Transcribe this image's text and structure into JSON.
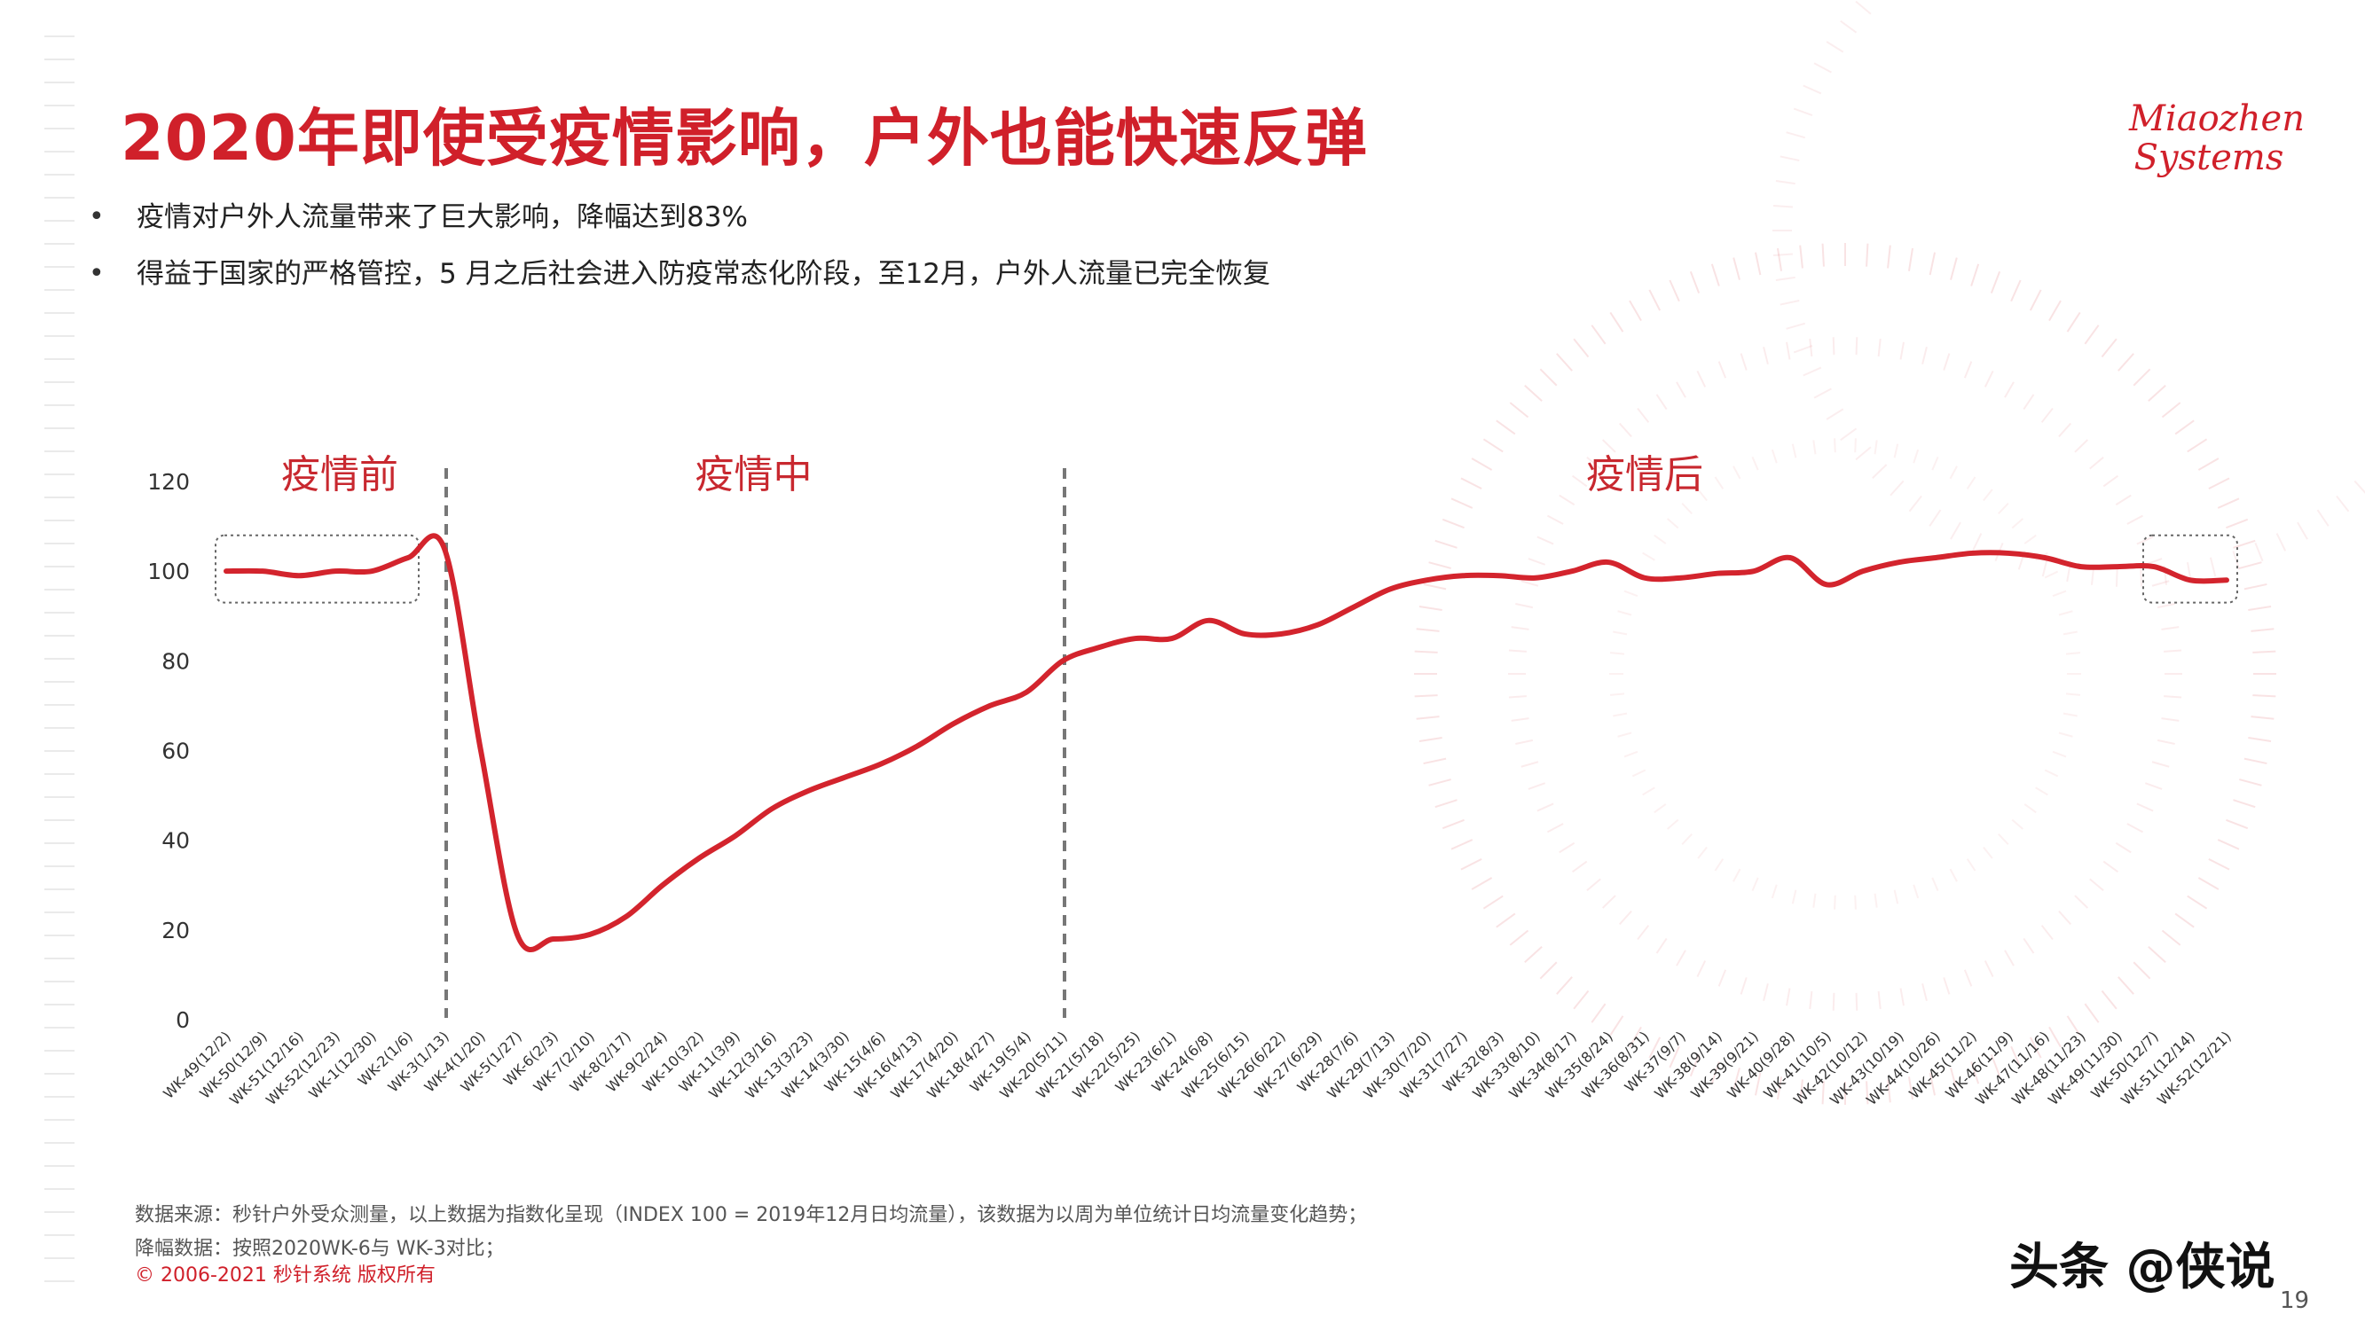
{
  "page": {
    "title": "2020年即使受疫情影响，户外也能快速反弹",
    "logo_line1": "Miaozhen",
    "logo_line2": "Systems",
    "bullets": [
      "疫情对户外人流量带来了巨大影响，降幅达到83%",
      "得益于国家的严格管控，5 月之后社会进入防疫常态化阶段，至12月，户外人流量已完全恢复"
    ],
    "footnote_source": "数据来源：秒针户外受众测量，以上数据为指数化呈现（INDEX 100 = 2019年12月日均流量），该数据为以周为单位统计日均流量变化趋势；",
    "footnote_decline": "降幅数据：按照2020WK-6与 WK-3对比；",
    "copyright": "© 2006-2021 秒针系统 版权所有",
    "watermark": "头条 @侠说",
    "page_number": "19"
  },
  "colors": {
    "accent": "#d0202a",
    "line": "#d3242d",
    "divider": "#777777"
  },
  "chart_data": {
    "type": "line",
    "title": "",
    "xlabel": "",
    "ylabel": "",
    "ylim": [
      0,
      120
    ],
    "yticks": [
      0,
      20,
      40,
      60,
      80,
      100,
      120
    ],
    "grid": false,
    "phase_labels": [
      "疫情前",
      "疫情中",
      "疫情后"
    ],
    "phase_boundaries": [
      "WK-3(1/13)",
      "WK-20(5/11)"
    ],
    "highlight_boxes": [
      [
        "WK-49(12/2)",
        "WK-2(1/6)"
      ],
      [
        "WK-50(12/7)",
        "WK-52(12/21)"
      ]
    ],
    "categories": [
      "WK-49(12/2)",
      "WK-50(12/9)",
      "WK-51(12/16)",
      "WK-52(12/23)",
      "WK-1(12/30)",
      "WK-2(1/6)",
      "WK-3(1/13)",
      "WK-4(1/20)",
      "WK-5(1/27)",
      "WK-6(2/3)",
      "WK-7(2/10)",
      "WK-8(2/17)",
      "WK-9(2/24)",
      "WK-10(3/2)",
      "WK-11(3/9)",
      "WK-12(3/16)",
      "WK-13(3/23)",
      "WK-14(3/30)",
      "WK-15(4/6)",
      "WK-16(4/13)",
      "WK-17(4/20)",
      "WK-18(4/27)",
      "WK-19(5/4)",
      "WK-20(5/11)",
      "WK-21(5/18)",
      "WK-22(5/25)",
      "WK-23(6/1)",
      "WK-24(6/8)",
      "WK-25(6/15)",
      "WK-26(6/22)",
      "WK-27(6/29)",
      "WK-28(7/6)",
      "WK-29(7/13)",
      "WK-30(7/20)",
      "WK-31(7/27)",
      "WK-32(8/3)",
      "WK-33(8/10)",
      "WK-34(8/17)",
      "WK-35(8/24)",
      "WK-36(8/31)",
      "WK-37(9/7)",
      "WK-38(9/14)",
      "WK-39(9/21)",
      "WK-40(9/28)",
      "WK-41(10/5)",
      "WK-42(10/12)",
      "WK-43(10/19)",
      "WK-44(10/26)",
      "WK-45(11/2)",
      "WK-46(11/9)",
      "WK-47(11/16)",
      "WK-48(11/23)",
      "WK-49(11/30)",
      "WK-50(12/7)",
      "WK-51(12/14)",
      "WK-52(12/21)"
    ],
    "series": [
      {
        "values": [
          100,
          100,
          99,
          100,
          100,
          103,
          105,
          60,
          19,
          18,
          19,
          23,
          30,
          36,
          41,
          47,
          51,
          54,
          57,
          61,
          66,
          70,
          73,
          80,
          83,
          85,
          85,
          89,
          86,
          86,
          88,
          92,
          96,
          98,
          99,
          99,
          98.5,
          100,
          102,
          98.5,
          98.5,
          99.5,
          100,
          103,
          97,
          100,
          102,
          103,
          104,
          104,
          103,
          101,
          101,
          101,
          98,
          98
        ]
      }
    ]
  }
}
